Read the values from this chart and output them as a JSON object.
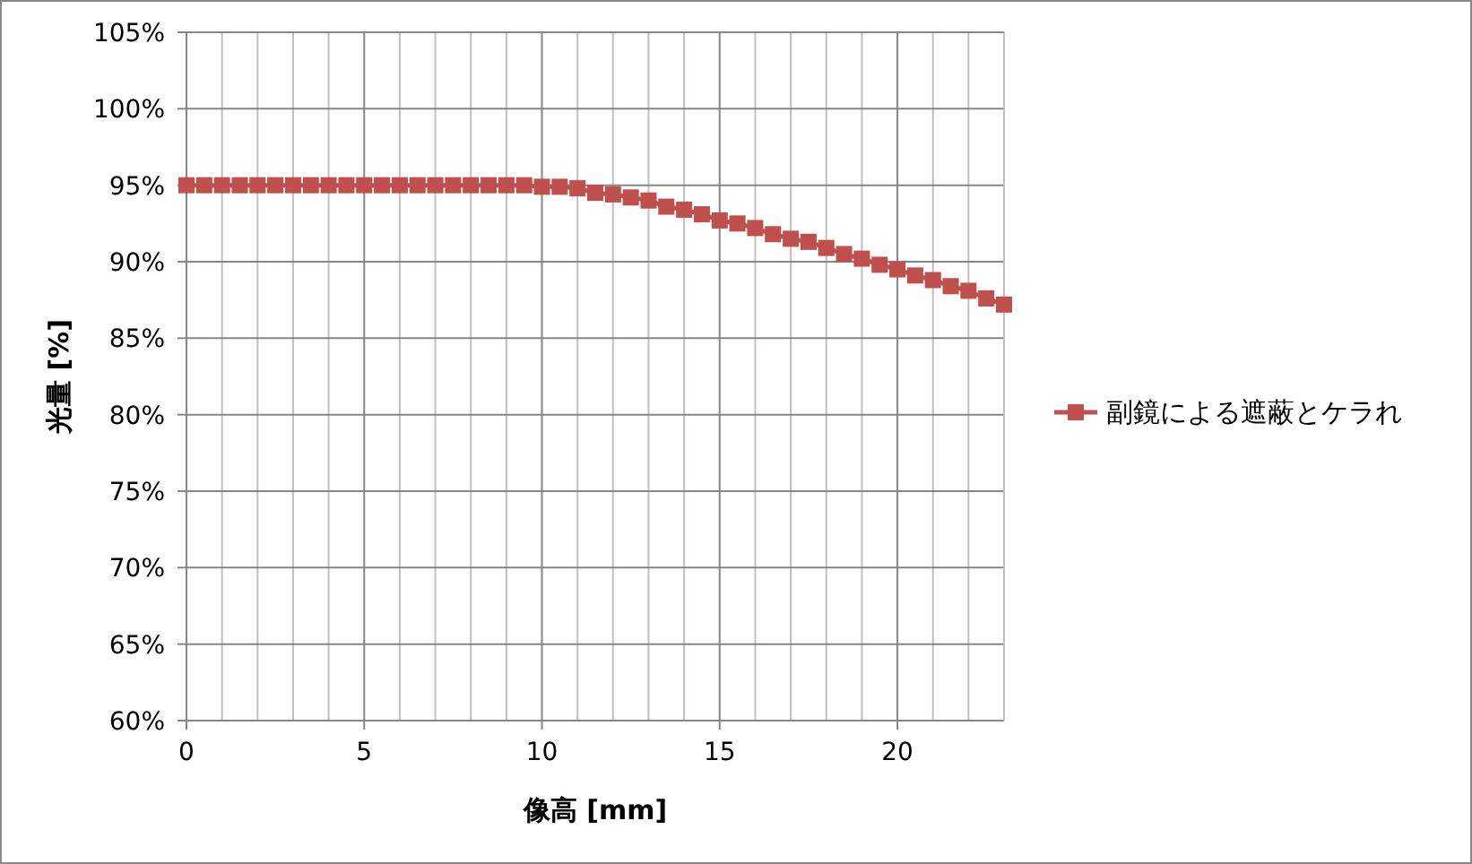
{
  "chart_data": {
    "type": "line",
    "xlabel": "像高 [mm]",
    "ylabel": "光量 [%]",
    "x": [
      0,
      0.5,
      1,
      1.5,
      2,
      2.5,
      3,
      3.5,
      4,
      4.5,
      5,
      5.5,
      6,
      6.5,
      7,
      7.5,
      8,
      8.5,
      9,
      9.5,
      10,
      10.5,
      11,
      11.5,
      12,
      12.5,
      13,
      13.5,
      14,
      14.5,
      15,
      15.5,
      16,
      16.5,
      17,
      17.5,
      18,
      18.5,
      19,
      19.5,
      20,
      20.5,
      21,
      21.5,
      22,
      22.5,
      23
    ],
    "series": [
      {
        "name": "副鏡による遮蔽とケラれ",
        "color": "#c0504d",
        "values": [
          95,
          95,
          95,
          95,
          95,
          95,
          95,
          95,
          95,
          95,
          95,
          95,
          95,
          95,
          95,
          95,
          95,
          95,
          95,
          95,
          94.9,
          94.9,
          94.8,
          94.5,
          94.4,
          94.2,
          94.0,
          93.6,
          93.4,
          93.1,
          92.7,
          92.5,
          92.2,
          91.8,
          91.5,
          91.3,
          90.9,
          90.5,
          90.2,
          89.8,
          89.5,
          89.1,
          88.8,
          88.4,
          88.1,
          87.6,
          87.2
        ]
      }
    ],
    "xlim": [
      0,
      23
    ],
    "xticks": [
      0,
      {
        "value": 1,
        "label": null
      },
      {
        "value": 2,
        "label": null
      },
      {
        "value": 3,
        "label": null
      },
      {
        "value": 4,
        "label": null
      },
      5,
      {
        "value": 6,
        "label": null
      },
      {
        "value": 7,
        "label": null
      },
      {
        "value": 8,
        "label": null
      },
      {
        "value": 9,
        "label": null
      },
      10,
      {
        "value": 11,
        "label": null
      },
      {
        "value": 12,
        "label": null
      },
      {
        "value": 13,
        "label": null
      },
      {
        "value": 14,
        "label": null
      },
      15,
      {
        "value": 16,
        "label": null
      },
      {
        "value": 17,
        "label": null
      },
      {
        "value": 18,
        "label": null
      },
      {
        "value": 19,
        "label": null
      },
      20,
      {
        "value": 21,
        "label": null
      },
      {
        "value": 22,
        "label": null
      }
    ],
    "ylim": [
      60,
      105
    ],
    "yticks": [
      {
        "value": 60,
        "label": "60%"
      },
      {
        "value": 65,
        "label": "65%"
      },
      {
        "value": 70,
        "label": "70%"
      },
      {
        "value": 75,
        "label": "75%"
      },
      {
        "value": 80,
        "label": "80%"
      },
      {
        "value": 85,
        "label": "85%"
      },
      {
        "value": 90,
        "label": "90%"
      },
      {
        "value": 95,
        "label": "95%"
      },
      {
        "value": 100,
        "label": "100%"
      },
      {
        "value": 105,
        "label": "105%"
      }
    ],
    "grid": true,
    "legend": "right",
    "marker": "square",
    "line_style": "solid"
  }
}
